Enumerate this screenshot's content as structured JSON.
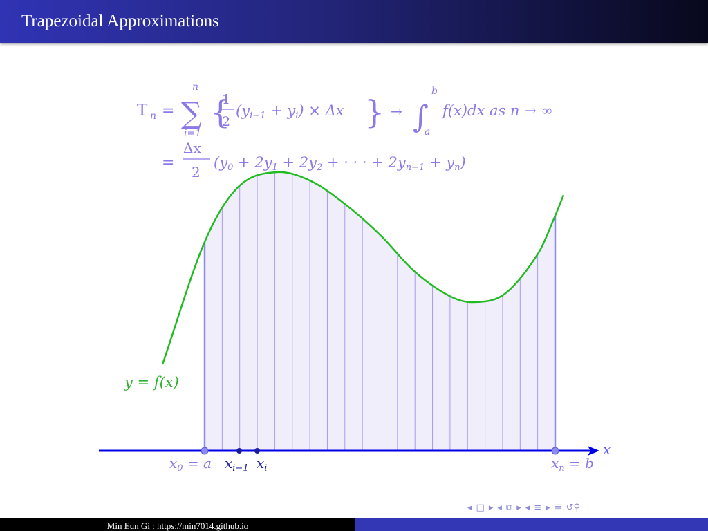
{
  "slide": {
    "title": "Trapezoidal Approximations",
    "footer_author": "Min Eun Gi : https://min7014.github.io"
  },
  "formula": {
    "line1": {
      "lhs": "T",
      "lhs_sub": "n",
      "equals": "=",
      "sum_sym": "∑",
      "sum_upper": "n",
      "sum_lower": "i=1",
      "lbrace": "{",
      "frac_num": "1",
      "frac_den": "2",
      "body": "(y",
      "body_sub1": "i−1",
      "body_mid": " + y",
      "body_sub2": "i",
      "body_end": ") × Δx",
      "rbrace": "}",
      "arrow": "→",
      "integral_sym": "∫",
      "int_upper": "b",
      "int_lower": "a",
      "integrand": "f(x)dx  as  n → ∞"
    },
    "line2": {
      "equals": "=",
      "frac_num": "Δx",
      "frac_den": "2",
      "body_a": "(y",
      "sub_a": "0",
      "body_b": " + 2y",
      "sub_b": "1",
      "body_c": " + 2y",
      "sub_c": "2",
      "body_d": " + · · · + 2y",
      "sub_d": "n−1",
      "body_e": " + y",
      "sub_e": "n",
      "body_f": ")"
    }
  },
  "diagram": {
    "curve_label": "y = f(x)",
    "x_axis_label": "x",
    "point_labels": {
      "x0": "x",
      "x0_sub": "0",
      "x0_rest": " = a",
      "xim1": "x",
      "xim1_sub": "i−1",
      "xi": "x",
      "xi_sub": "i",
      "xn": "x",
      "xn_sub": "n",
      "xn_rest": " = b"
    },
    "subintervals": 20,
    "colors": {
      "curve": "#22bb22",
      "fill": "#f1eefc",
      "grid": "#a89af0",
      "axis": "#0000e6",
      "edge": "#8a8af0"
    }
  },
  "navigation": {
    "icons": [
      "nav-prev-frame-icon",
      "nav-frame-icon",
      "nav-next-frame-icon",
      "nav-prev-subsection-icon",
      "nav-subsection-icon",
      "nav-next-subsection-icon",
      "nav-prev-section-icon",
      "nav-section-icon",
      "nav-next-section-icon",
      "nav-align-icon",
      "nav-search-icon"
    ]
  }
}
